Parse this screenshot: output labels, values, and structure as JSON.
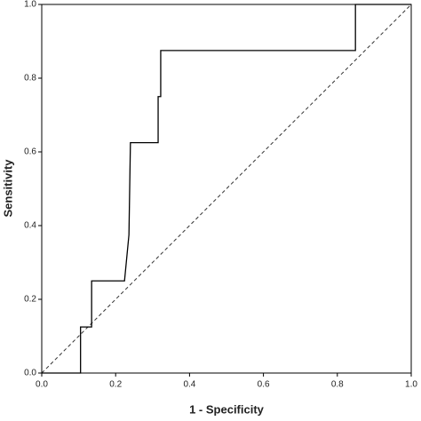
{
  "chart_data": {
    "type": "line",
    "x_label": "1 - Specificity",
    "y_label": "Sensitivity",
    "x": [
      0,
      0.105,
      0.105,
      0.135,
      0.135,
      0.224,
      0.236,
      0.238,
      0.24,
      0.315,
      0.315,
      0.322,
      0.322,
      0.849,
      0.849,
      1.0
    ],
    "series": [
      {
        "color": "#000000",
        "values": [
          0,
          0,
          0.125,
          0.125,
          0.25,
          0.25,
          0.375,
          0.5,
          0.625,
          0.625,
          0.75,
          0.75,
          0.875,
          0.875,
          1,
          1
        ]
      }
    ],
    "xlim": [
      0,
      1
    ],
    "ylim": [
      0,
      1
    ],
    "xticks": [
      {
        "value": 0,
        "label": "0.0"
      },
      0.2,
      0.4,
      0.6,
      0.8,
      {
        "value": 1,
        "label": "1.0"
      }
    ],
    "yticks": [
      {
        "value": 0,
        "label": "0.0"
      },
      0.2,
      0.4,
      0.6,
      0.8,
      {
        "value": 1,
        "label": "1.0"
      }
    ]
  }
}
